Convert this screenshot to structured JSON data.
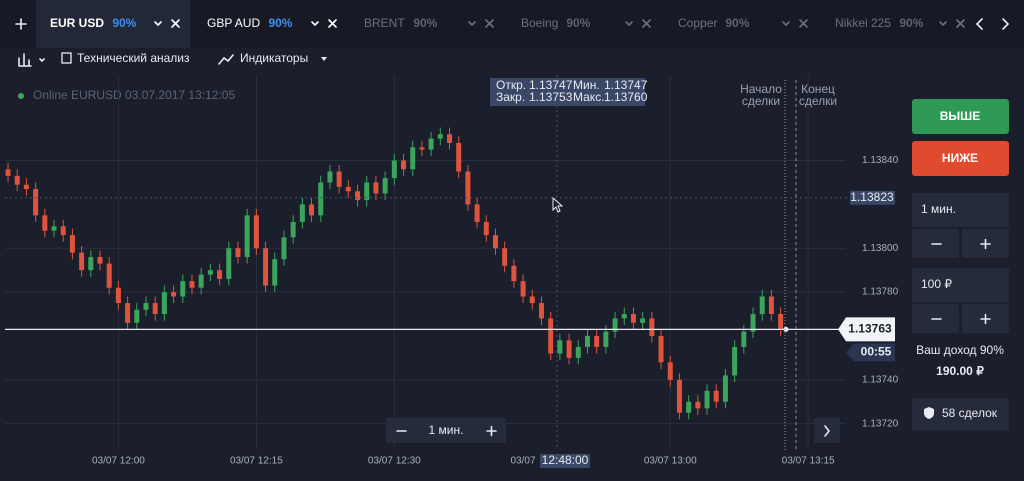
{
  "tabs": [
    {
      "label": "EUR USD",
      "payout": "90%",
      "active": true
    },
    {
      "label": "GBP AUD",
      "payout": "90%",
      "active": false
    },
    {
      "label": "BRENT",
      "payout": "90%",
      "active": false
    },
    {
      "label": "Boeing",
      "payout": "90%",
      "active": false
    },
    {
      "label": "Copper",
      "payout": "90%",
      "active": false
    },
    {
      "label": "Nikkei 225",
      "payout": "90%",
      "active": false
    }
  ],
  "toolbar": {
    "analysis": "Технический анализ",
    "indicators": "Индикаторы"
  },
  "status": "Online EURUSD 03.07.2017 13:12:05",
  "ohlc_box": {
    "open_label": "Откр.",
    "open": "1.13747",
    "low_label": "Мин.",
    "low": "1.13747",
    "close_label": "Закр.",
    "close": "1.13753",
    "high_label": "Макс.",
    "high": "1.13760"
  },
  "markers": {
    "start": [
      "Начало",
      "сделки"
    ],
    "end": [
      "Конец",
      "сделки"
    ]
  },
  "chart_data": {
    "type": "candlestick",
    "open": [
      1.13836,
      1.13833,
      1.13829,
      1.13827,
      1.13815,
      1.13808,
      1.1381,
      1.13806,
      1.13798,
      1.1379,
      1.13796,
      1.13793,
      1.13782,
      1.13775,
      1.13766,
      1.13772,
      1.13775,
      1.1377,
      1.1378,
      1.13778,
      1.13785,
      1.13782,
      1.13788,
      1.1379,
      1.13786,
      1.138,
      1.13796,
      1.13815,
      1.138,
      1.13783,
      1.13795,
      1.13805,
      1.13812,
      1.1382,
      1.13815,
      1.1383,
      1.13835,
      1.13828,
      1.13826,
      1.13822,
      1.1383,
      1.13825,
      1.13832,
      1.1384,
      1.13836,
      1.13846,
      1.13845,
      1.1385,
      1.13852,
      1.13848,
      1.13835,
      1.1382,
      1.13812,
      1.13806,
      1.138,
      1.13792,
      1.13785,
      1.13778,
      1.13775,
      1.13768,
      1.13752,
      1.13758,
      1.1375,
      1.13755,
      1.1376,
      1.13755,
      1.13762,
      1.13768,
      1.1377,
      1.13766,
      1.13768,
      1.1376,
      1.13748,
      1.1374,
      1.13725,
      1.1373,
      1.13727,
      1.13735,
      1.1373,
      1.13742,
      1.13755,
      1.13762,
      1.1377,
      1.13778,
      1.1377
    ],
    "high": [
      1.13839,
      1.13836,
      1.13832,
      1.1383,
      1.13818,
      1.13813,
      1.13813,
      1.13809,
      1.13801,
      1.13799,
      1.13799,
      1.13796,
      1.13785,
      1.13778,
      1.13775,
      1.13778,
      1.13778,
      1.13783,
      1.13783,
      1.13788,
      1.13788,
      1.13791,
      1.13793,
      1.13793,
      1.13803,
      1.13803,
      1.13818,
      1.13818,
      1.13803,
      1.13798,
      1.13808,
      1.13815,
      1.13823,
      1.13823,
      1.13833,
      1.13838,
      1.13838,
      1.13831,
      1.13829,
      1.13833,
      1.13833,
      1.13835,
      1.13843,
      1.13843,
      1.13849,
      1.13849,
      1.13853,
      1.13855,
      1.13855,
      1.13851,
      1.13838,
      1.13823,
      1.13815,
      1.13809,
      1.13803,
      1.13795,
      1.13788,
      1.13781,
      1.13778,
      1.13771,
      1.13761,
      1.13761,
      1.13758,
      1.13763,
      1.13763,
      1.13765,
      1.13771,
      1.13773,
      1.13773,
      1.13771,
      1.13771,
      1.13763,
      1.13751,
      1.13743,
      1.13733,
      1.13733,
      1.13738,
      1.13738,
      1.13745,
      1.13758,
      1.13765,
      1.13773,
      1.13781,
      1.13781,
      1.13773
    ],
    "low": [
      1.1383,
      1.13826,
      1.13824,
      1.13812,
      1.13805,
      1.13805,
      1.13803,
      1.13795,
      1.13787,
      1.13787,
      1.1379,
      1.13779,
      1.13772,
      1.13763,
      1.13763,
      1.13769,
      1.13767,
      1.13767,
      1.13775,
      1.13775,
      1.13779,
      1.13779,
      1.13785,
      1.13783,
      1.13783,
      1.13793,
      1.13793,
      1.13797,
      1.1378,
      1.1378,
      1.13792,
      1.13802,
      1.13809,
      1.13812,
      1.13812,
      1.13827,
      1.13825,
      1.13823,
      1.13819,
      1.13819,
      1.13822,
      1.13822,
      1.13829,
      1.13833,
      1.13833,
      1.13842,
      1.13842,
      1.13847,
      1.13845,
      1.13832,
      1.13817,
      1.13809,
      1.13803,
      1.13797,
      1.13789,
      1.13782,
      1.13775,
      1.13772,
      1.13765,
      1.13749,
      1.13749,
      1.13747,
      1.13747,
      1.13752,
      1.13752,
      1.13752,
      1.13759,
      1.13765,
      1.13763,
      1.13763,
      1.13757,
      1.13745,
      1.13737,
      1.13722,
      1.13722,
      1.13724,
      1.13724,
      1.13727,
      1.13727,
      1.13739,
      1.13752,
      1.13759,
      1.13767,
      1.13767,
      1.1376
    ],
    "close": [
      1.13833,
      1.13829,
      1.13827,
      1.13815,
      1.13808,
      1.1381,
      1.13806,
      1.13798,
      1.1379,
      1.13796,
      1.13793,
      1.13782,
      1.13775,
      1.13766,
      1.13772,
      1.13775,
      1.1377,
      1.1378,
      1.13778,
      1.13785,
      1.13782,
      1.13788,
      1.1379,
      1.13786,
      1.138,
      1.13796,
      1.13815,
      1.138,
      1.13783,
      1.13795,
      1.13805,
      1.13812,
      1.1382,
      1.13815,
      1.1383,
      1.13835,
      1.13828,
      1.13826,
      1.13822,
      1.1383,
      1.13825,
      1.13832,
      1.1384,
      1.13836,
      1.13846,
      1.13845,
      1.1385,
      1.13852,
      1.13848,
      1.13835,
      1.1382,
      1.13812,
      1.13806,
      1.138,
      1.13792,
      1.13785,
      1.13778,
      1.13775,
      1.13768,
      1.13752,
      1.13758,
      1.1375,
      1.13755,
      1.1376,
      1.13755,
      1.13762,
      1.13768,
      1.1377,
      1.13766,
      1.13768,
      1.1376,
      1.13748,
      1.1374,
      1.13725,
      1.1373,
      1.13727,
      1.13735,
      1.1373,
      1.13742,
      1.13755,
      1.13762,
      1.1377,
      1.13778,
      1.1377,
      1.13763
    ],
    "up_color": "#3ba55c",
    "down_color": "#e0533c",
    "xlim": [
      -0.33,
      91
    ],
    "ylim": [
      1.13708,
      1.13879
    ],
    "xticks": [
      {
        "value": 12,
        "label": "03/07 12:00"
      },
      {
        "value": 27,
        "label": "03/07 12:15"
      },
      {
        "value": 42,
        "label": "03/07 12:30"
      },
      {
        "value": 72,
        "label": "03/07 13:00"
      },
      {
        "value": 87,
        "label": "03/07 13:15"
      }
    ],
    "yticks": [
      {
        "value": 1.1372,
        "label": "1.13720"
      },
      {
        "value": 1.1374,
        "label": "1.13740"
      },
      {
        "value": 1.1378,
        "label": "1.13780"
      },
      {
        "value": 1.138,
        "label": "1.13800"
      },
      {
        "value": 1.1384,
        "label": "1.13840"
      }
    ],
    "grid": true,
    "current_price": 1.13763,
    "timer": "00:55",
    "crosshair": {
      "price": 1.13823,
      "date": "03/07",
      "time": "12:48:00"
    }
  },
  "zoom": "1 мин.",
  "trade": {
    "up": "ВЫШЕ",
    "down": "НИЖЕ",
    "duration": "1 мин.",
    "amount": "100 ₽",
    "income_label": "Ваш доход 90%",
    "income": "190.00 ₽",
    "deals": "58 сделок"
  }
}
